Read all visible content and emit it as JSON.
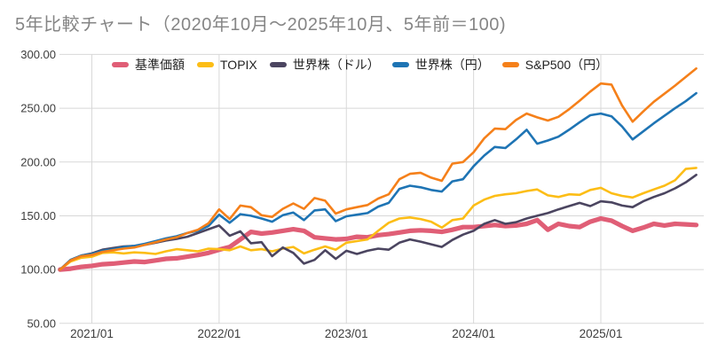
{
  "title": "5年比較チャート（2020年10月～2025年10月、5年前＝100)",
  "chart_data": {
    "type": "line",
    "x_start": "2020/10",
    "x_end": "2025/10",
    "months_total": 61,
    "note": "monthly index values, 2020/10 = 100",
    "ylim": [
      50,
      300
    ],
    "grid": true,
    "grid_color": "#d8d8d8",
    "legend_position": "top",
    "y_ticks": [
      300,
      250,
      200,
      150,
      100,
      50
    ],
    "y_tick_labels": [
      "300.00",
      "250.00",
      "200.00",
      "150.00",
      "100.00",
      "50.00"
    ],
    "x_ticks": [
      {
        "label": "2021/01",
        "month_index": 3
      },
      {
        "label": "2022/01",
        "month_index": 15
      },
      {
        "label": "2023/01",
        "month_index": 27
      },
      {
        "label": "2024/01",
        "month_index": 39
      },
      {
        "label": "2025/01",
        "month_index": 51
      }
    ],
    "series": [
      {
        "id": "fund",
        "name": "基準価額",
        "color": "#e05e76",
        "stroke_width": 5.2,
        "values": [
          100,
          100.8,
          102.5,
          103.5,
          105,
          105.5,
          106.5,
          107.5,
          107,
          108.5,
          110,
          110.5,
          112,
          113.5,
          115.5,
          118.5,
          121,
          128,
          135,
          133.5,
          134.5,
          136,
          137.5,
          136,
          130,
          129,
          128,
          128.5,
          130.5,
          130,
          132,
          133,
          134.5,
          136,
          136.5,
          136,
          135,
          137,
          139.5,
          139.5,
          140.5,
          141.5,
          140.5,
          141,
          142.5,
          146,
          137,
          142.5,
          140.5,
          139.5,
          144.5,
          147.5,
          145.5,
          140.5,
          136,
          139,
          142.5,
          141,
          142.5,
          142,
          141.5
        ]
      },
      {
        "id": "topix",
        "name": "TOPIX",
        "color": "#fcbd16",
        "stroke_width": 2.6,
        "values": [
          100,
          107.5,
          111,
          112,
          115.5,
          116,
          115,
          116,
          115.5,
          114.5,
          117,
          119,
          118,
          117,
          119.5,
          119,
          118,
          121.5,
          118,
          119,
          117,
          119.5,
          121,
          115,
          118.5,
          121.5,
          118.5,
          125,
          126.5,
          128,
          136,
          143.5,
          147.5,
          148.5,
          147,
          144.5,
          139,
          146,
          147.5,
          159.5,
          165,
          168.5,
          170,
          171,
          173,
          174.5,
          169,
          167.5,
          170,
          169.5,
          174,
          176,
          171,
          168.5,
          167,
          171,
          174.5,
          178,
          183,
          193.5,
          194.5
        ]
      },
      {
        "id": "world-usd",
        "name": "世界株（ドル）",
        "color": "#4b4560",
        "stroke_width": 2.6,
        "values": [
          100,
          109,
          113,
          115,
          118.5,
          120,
          121.5,
          122,
          123,
          125,
          127,
          128.5,
          130.5,
          134,
          137.5,
          141,
          131.5,
          135.5,
          124.5,
          125.5,
          112.5,
          120.5,
          115.5,
          105.5,
          109,
          118,
          110,
          117.5,
          114.5,
          117.5,
          119.5,
          118.5,
          125,
          128,
          126,
          123.5,
          121,
          127.5,
          132.5,
          136,
          142.5,
          146,
          142.5,
          144,
          147.5,
          150,
          152.5,
          156,
          159,
          162,
          159,
          163.5,
          162.5,
          159.5,
          158,
          163.5,
          167.5,
          171,
          175.5,
          181,
          188
        ]
      },
      {
        "id": "world-jpy",
        "name": "世界株（円）",
        "color": "#1e74b4",
        "stroke_width": 2.6,
        "values": [
          100,
          109,
          113,
          114.5,
          117.5,
          119,
          121,
          122,
          124,
          126.5,
          129,
          131,
          134,
          136,
          140.5,
          151,
          143.5,
          151.5,
          150,
          147.5,
          144.5,
          150.5,
          153,
          146,
          155,
          156,
          145,
          149.5,
          151,
          152.5,
          158.5,
          162,
          175,
          178,
          176.5,
          174,
          172.5,
          182,
          184,
          196,
          206,
          214,
          213,
          221,
          230,
          217,
          220,
          223.5,
          230,
          237,
          243.5,
          245,
          242.5,
          233,
          221,
          228.5,
          236,
          243,
          250,
          256.5,
          264
        ]
      },
      {
        "id": "sp500-jpy",
        "name": "S&P500（円）",
        "color": "#f5801a",
        "stroke_width": 2.6,
        "values": [
          100,
          108.5,
          112.5,
          113.5,
          116.5,
          118,
          119.5,
          120.5,
          123,
          125.5,
          128,
          130,
          134,
          137,
          143,
          156,
          147,
          159.5,
          158,
          150.5,
          149,
          156.5,
          161.5,
          156.5,
          166.5,
          164,
          152,
          156,
          158,
          160,
          166,
          170,
          184,
          189,
          190,
          185.5,
          182.5,
          198.5,
          200,
          209,
          222,
          231,
          230.5,
          239,
          245,
          241.5,
          238.5,
          242,
          249,
          257,
          265.5,
          273,
          272,
          252.5,
          237.5,
          247,
          256,
          263.5,
          271,
          279,
          287
        ]
      }
    ]
  }
}
